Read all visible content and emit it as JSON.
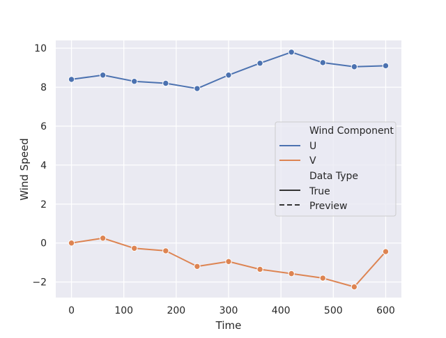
{
  "chart_data": {
    "type": "line",
    "title": "",
    "xlabel": "Time",
    "ylabel": "Wind Speed",
    "xlim": [
      -30,
      630
    ],
    "ylim": [
      -2.8,
      10.4
    ],
    "xticks": [
      0,
      100,
      200,
      300,
      400,
      500,
      600
    ],
    "yticks": [
      -2,
      0,
      2,
      4,
      6,
      8,
      10
    ],
    "ytick_labels": [
      "−2",
      "0",
      "2",
      "4",
      "6",
      "8",
      "10"
    ],
    "grid": true,
    "x": [
      0,
      60,
      120,
      180,
      240,
      300,
      360,
      420,
      480,
      540,
      600
    ],
    "series": [
      {
        "name": "U",
        "color": "#4c72b0",
        "values": [
          8.4,
          8.62,
          8.3,
          8.2,
          7.93,
          8.62,
          9.23,
          9.8,
          9.26,
          9.05,
          9.1
        ]
      },
      {
        "name": "V",
        "color": "#dd8452",
        "values": [
          0.0,
          0.25,
          -0.27,
          -0.4,
          -1.2,
          -0.95,
          -1.35,
          -1.57,
          -1.8,
          -2.25,
          -0.44
        ]
      }
    ],
    "legend": {
      "placement": "center-right",
      "hue_title": "Wind Component",
      "style_title": "Data Type",
      "style_entries": [
        {
          "label": "True",
          "dash": "solid"
        },
        {
          "label": "Preview",
          "dash": "dashed"
        }
      ]
    }
  }
}
